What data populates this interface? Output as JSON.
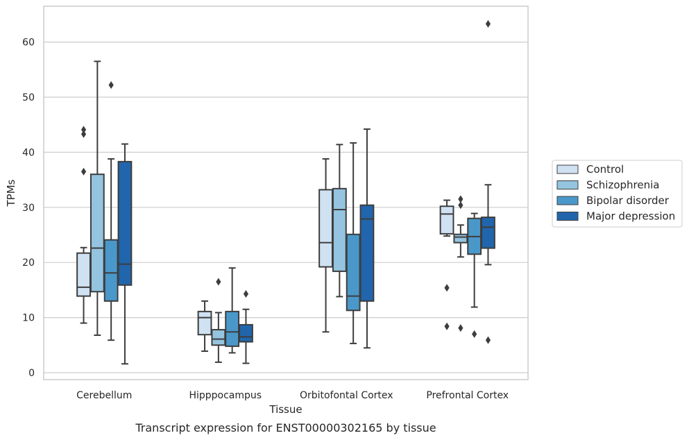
{
  "chart_data": {
    "type": "box",
    "xlabel": "Tissue",
    "ylabel": "TPMs",
    "caption": "Transcript expression for ENST00000302165 by tissue",
    "ylim": [
      -1.2,
      66
    ],
    "yticks": [
      0,
      10,
      20,
      30,
      40,
      50,
      60
    ],
    "grid": true,
    "legend_position": "right",
    "categories": [
      "Cerebellum",
      "Hipppocampus",
      "Orbitofontal Cortex",
      "Prefrontal Cortex"
    ],
    "series": [
      {
        "name": "Control",
        "color": "#d0e1f2",
        "boxes": [
          {
            "whisker_low": 9.0,
            "q1": 13.9,
            "median": 15.5,
            "q3": 21.7,
            "whisker_high": 22.7,
            "outliers": [
              36.5,
              43.3,
              44.1
            ]
          },
          {
            "whisker_low": 3.9,
            "q1": 6.9,
            "median": 10.0,
            "q3": 11.1,
            "whisker_high": 13.0,
            "outliers": []
          },
          {
            "whisker_low": 7.4,
            "q1": 19.2,
            "median": 23.6,
            "q3": 33.2,
            "whisker_high": 38.8,
            "outliers": []
          },
          {
            "whisker_low": 24.8,
            "q1": 25.2,
            "median": 28.8,
            "q3": 30.2,
            "whisker_high": 31.3,
            "outliers": [
              15.4,
              8.4
            ]
          }
        ]
      },
      {
        "name": "Schizophrenia",
        "color": "#94c4df",
        "boxes": [
          {
            "whisker_low": 6.8,
            "q1": 14.7,
            "median": 22.6,
            "q3": 36.0,
            "whisker_high": 56.5,
            "outliers": []
          },
          {
            "whisker_low": 1.9,
            "q1": 5.0,
            "median": 6.1,
            "q3": 7.8,
            "whisker_high": 10.9,
            "outliers": [
              16.5
            ]
          },
          {
            "whisker_low": 13.8,
            "q1": 18.4,
            "median": 29.6,
            "q3": 33.4,
            "whisker_high": 41.4,
            "outliers": []
          },
          {
            "whisker_low": 21.0,
            "q1": 23.6,
            "median": 24.6,
            "q3": 25.1,
            "whisker_high": 26.8,
            "outliers": [
              31.5,
              30.4,
              8.1
            ]
          }
        ]
      },
      {
        "name": "Bipolar disorder",
        "color": "#4a98c9",
        "boxes": [
          {
            "whisker_low": 5.9,
            "q1": 13.0,
            "median": 18.1,
            "q3": 24.1,
            "whisker_high": 38.8,
            "outliers": [
              52.2
            ]
          },
          {
            "whisker_low": 3.6,
            "q1": 4.8,
            "median": 7.4,
            "q3": 11.1,
            "whisker_high": 19.0,
            "outliers": []
          },
          {
            "whisker_low": 5.3,
            "q1": 11.3,
            "median": 13.9,
            "q3": 25.1,
            "whisker_high": 41.7,
            "outliers": []
          },
          {
            "whisker_low": 11.9,
            "q1": 21.5,
            "median": 24.7,
            "q3": 28.0,
            "whisker_high": 28.9,
            "outliers": [
              7.0
            ]
          }
        ]
      },
      {
        "name": "Major depression",
        "color": "#2166ac",
        "boxes": [
          {
            "whisker_low": 1.6,
            "q1": 15.9,
            "median": 19.7,
            "q3": 38.3,
            "whisker_high": 41.5,
            "outliers": []
          },
          {
            "whisker_low": 1.7,
            "q1": 5.6,
            "median": 6.5,
            "q3": 8.7,
            "whisker_high": 11.5,
            "outliers": [
              14.3
            ]
          },
          {
            "whisker_low": 4.5,
            "q1": 13.0,
            "median": 27.9,
            "q3": 30.4,
            "whisker_high": 44.2,
            "outliers": []
          },
          {
            "whisker_low": 19.6,
            "q1": 22.6,
            "median": 26.4,
            "q3": 28.2,
            "whisker_high": 34.1,
            "outliers": [
              63.3,
              5.9
            ]
          }
        ]
      }
    ]
  }
}
